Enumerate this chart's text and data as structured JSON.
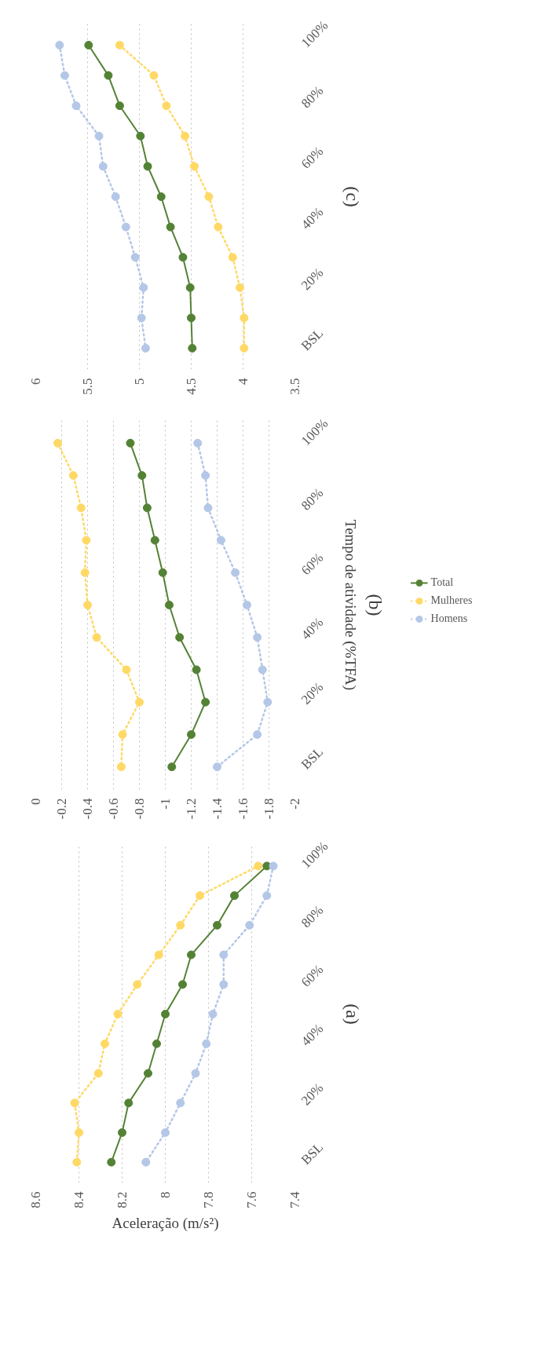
{
  "chart_data": [
    {
      "type": "line",
      "annotations": [
        "(c)"
      ],
      "orientation": "horizontal",
      "categories": [
        "100%",
        null,
        "80%",
        null,
        "60%",
        null,
        "40%",
        null,
        "20%",
        null,
        "BSL"
      ],
      "xlim": [
        6,
        3.5
      ],
      "xticks": [
        6,
        5.5,
        5,
        4.5,
        4,
        3.5
      ],
      "grid": "x",
      "marker": "circle",
      "series": [
        {
          "color": "#548235",
          "line_style": "solid",
          "values": [
            5.49,
            5.3,
            5.19,
            4.99,
            4.92,
            4.79,
            4.7,
            4.58,
            4.51,
            4.5,
            4.49
          ]
        },
        {
          "color": "#ffd966",
          "line_style": "dotted",
          "values": [
            5.19,
            4.86,
            4.74,
            4.56,
            4.47,
            4.33,
            4.24,
            4.1,
            4.03,
            3.99,
            3.99
          ]
        },
        {
          "color": "#b4c7e7",
          "line_style": "dotted",
          "values": [
            5.77,
            5.72,
            5.61,
            5.39,
            5.35,
            5.23,
            5.13,
            5.04,
            4.96,
            4.98,
            4.94
          ]
        }
      ]
    },
    {
      "type": "line",
      "annotations": [
        "(b)"
      ],
      "ylabel": "Tempo de atividade (%TFA)",
      "orientation": "horizontal",
      "categories": [
        "100%",
        null,
        "80%",
        null,
        "60%",
        null,
        "40%",
        null,
        "20%",
        null,
        "BSL"
      ],
      "xlim": [
        0,
        -2
      ],
      "xticks": [
        0,
        -0.2,
        -0.4,
        -0.6,
        -0.8,
        -1,
        -1.2,
        -1.4,
        -1.6,
        -1.8,
        -2
      ],
      "grid": "x",
      "marker": "circle",
      "legend": "right",
      "series": [
        {
          "name": "Total",
          "color": "#548235",
          "line_style": "solid",
          "values": [
            -0.73,
            -0.82,
            -0.86,
            -0.92,
            -0.98,
            -1.03,
            -1.11,
            -1.24,
            -1.31,
            -1.2,
            -1.05
          ]
        },
        {
          "name": "Mulheres",
          "color": "#ffd966",
          "line_style": "dotted",
          "values": [
            -0.17,
            -0.29,
            -0.35,
            -0.39,
            -0.38,
            -0.4,
            -0.47,
            -0.7,
            -0.8,
            -0.67,
            -0.66
          ]
        },
        {
          "name": "Homens",
          "color": "#b4c7e7",
          "line_style": "dotted",
          "values": [
            -1.25,
            -1.31,
            -1.33,
            -1.43,
            -1.54,
            -1.63,
            -1.71,
            -1.75,
            -1.79,
            -1.71,
            -1.4
          ]
        }
      ]
    },
    {
      "type": "line",
      "annotations": [
        "(a)"
      ],
      "xlabel": "Aceleração (m/s²)",
      "orientation": "horizontal",
      "categories": [
        "100%",
        null,
        "80%",
        null,
        "60%",
        null,
        "40%",
        null,
        "20%",
        null,
        "BSL"
      ],
      "xlim": [
        8.6,
        7.4
      ],
      "xticks": [
        8.6,
        8.4,
        8.2,
        8,
        7.8,
        7.6,
        7.4
      ],
      "grid": "x",
      "marker": "circle",
      "series": [
        {
          "color": "#548235",
          "line_style": "solid",
          "values": [
            7.53,
            7.68,
            7.76,
            7.88,
            7.92,
            8.0,
            8.04,
            8.08,
            8.17,
            8.2,
            8.25
          ]
        },
        {
          "color": "#ffd966",
          "line_style": "dotted",
          "values": [
            7.57,
            7.84,
            7.93,
            8.03,
            8.13,
            8.22,
            8.28,
            8.31,
            8.42,
            8.4,
            8.41
          ]
        },
        {
          "color": "#b4c7e7",
          "line_style": "dotted",
          "values": [
            7.5,
            7.53,
            7.61,
            7.73,
            7.73,
            7.78,
            7.81,
            7.86,
            7.93,
            8.0,
            8.09
          ]
        }
      ]
    }
  ]
}
